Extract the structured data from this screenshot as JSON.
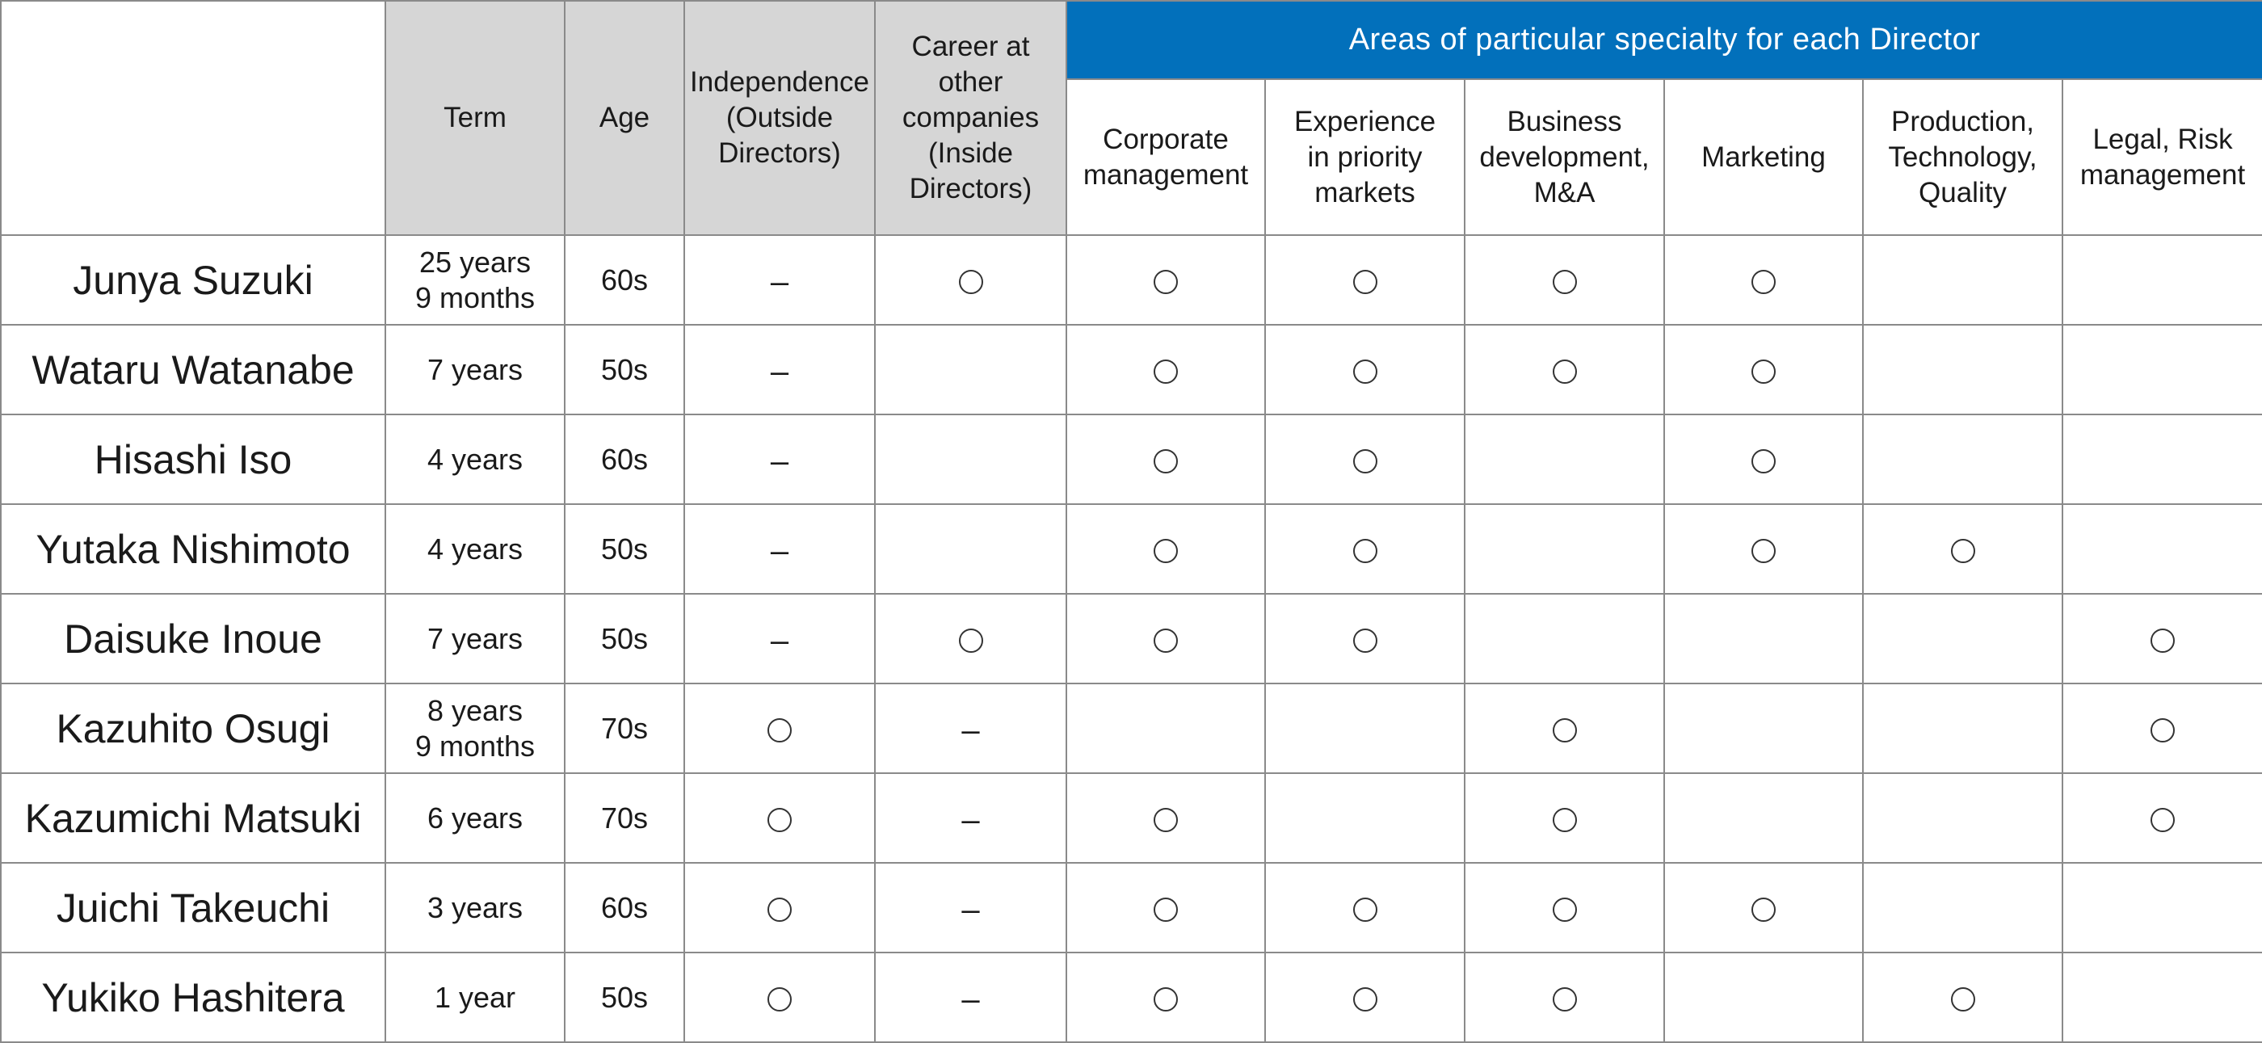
{
  "header": {
    "term": "Term",
    "age": "Age",
    "independence": "Independence\n(Outside\nDirectors)",
    "career": "Career at\nother\ncompanies\n(Inside\nDirectors)",
    "specialty_title": "Areas of particular specialty for each Director",
    "specialties": [
      "Corporate\nmanagement",
      "Experience\nin priority\nmarkets",
      "Business\ndevelopment,\nM&A",
      "Marketing",
      "Production,\nTechnology,\nQuality",
      "Legal, Risk\nmanagement"
    ]
  },
  "marks": {
    "circle": "circle",
    "dash": "–"
  },
  "directors": [
    {
      "name": "Junya Suzuki",
      "term": "25 years\n9 months",
      "age": "60s",
      "independence": "dash",
      "career": "circle",
      "specialties": [
        "circle",
        "circle",
        "circle",
        "circle",
        "",
        ""
      ]
    },
    {
      "name": "Wataru Watanabe",
      "term": "7 years",
      "age": "50s",
      "independence": "dash",
      "career": "",
      "specialties": [
        "circle",
        "circle",
        "circle",
        "circle",
        "",
        ""
      ]
    },
    {
      "name": "Hisashi Iso",
      "term": "4 years",
      "age": "60s",
      "independence": "dash",
      "career": "",
      "specialties": [
        "circle",
        "circle",
        "",
        "circle",
        "",
        ""
      ]
    },
    {
      "name": "Yutaka Nishimoto",
      "term": "4 years",
      "age": "50s",
      "independence": "dash",
      "career": "",
      "specialties": [
        "circle",
        "circle",
        "",
        "circle",
        "circle",
        ""
      ]
    },
    {
      "name": "Daisuke Inoue",
      "term": "7 years",
      "age": "50s",
      "independence": "dash",
      "career": "circle",
      "specialties": [
        "circle",
        "circle",
        "",
        "",
        "",
        "circle"
      ]
    },
    {
      "name": "Kazuhito Osugi",
      "term": "8 years\n9 months",
      "age": "70s",
      "independence": "circle",
      "career": "dash",
      "specialties": [
        "",
        "",
        "circle",
        "",
        "",
        "circle"
      ]
    },
    {
      "name": "Kazumichi Matsuki",
      "term": "6 years",
      "age": "70s",
      "independence": "circle",
      "career": "dash",
      "specialties": [
        "circle",
        "",
        "circle",
        "",
        "",
        "circle"
      ]
    },
    {
      "name": "Juichi Takeuchi",
      "term": "3 years",
      "age": "60s",
      "independence": "circle",
      "career": "dash",
      "specialties": [
        "circle",
        "circle",
        "circle",
        "circle",
        "",
        ""
      ]
    },
    {
      "name": "Yukiko Hashitera",
      "term": "1 year",
      "age": "50s",
      "independence": "circle",
      "career": "dash",
      "specialties": [
        "circle",
        "circle",
        "circle",
        "",
        "circle",
        ""
      ]
    }
  ]
}
